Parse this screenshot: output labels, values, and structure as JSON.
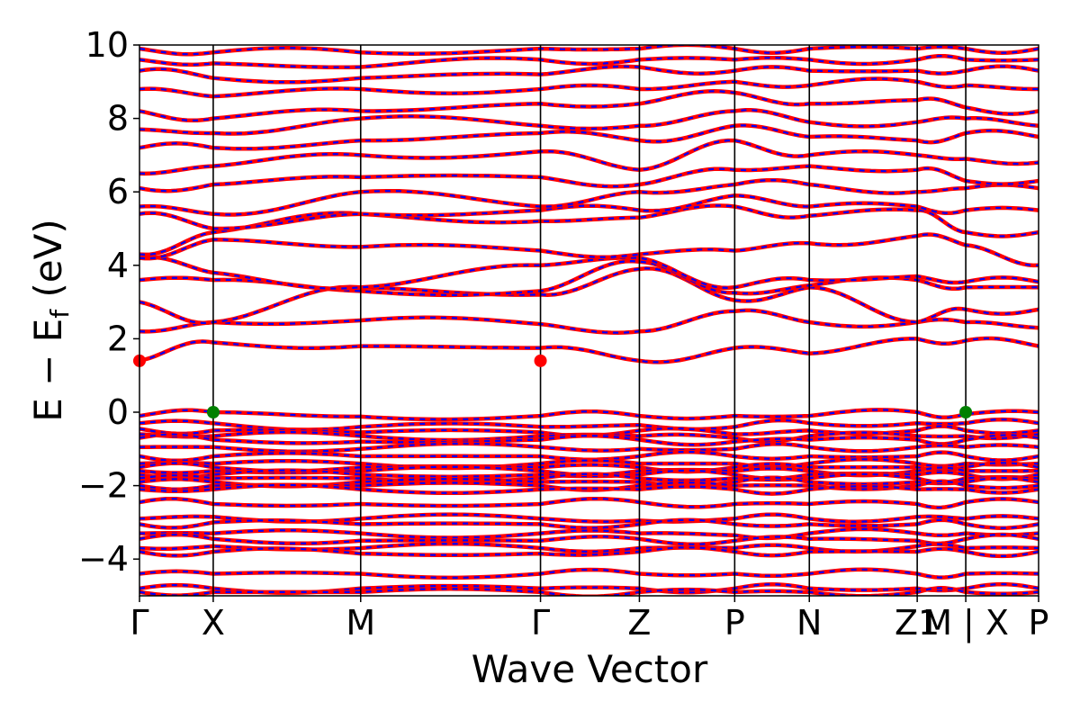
{
  "chart_data": {
    "type": "line",
    "title": "",
    "xlabel": "Wave Vector",
    "ylabel": {
      "main": "E − E",
      "sub": "f",
      "unit": " (eV)"
    },
    "ylim": [
      -5,
      10
    ],
    "yticks": [
      -4,
      -2,
      0,
      2,
      4,
      6,
      8,
      10
    ],
    "ytick_labels": [
      "−4",
      "−2",
      "0",
      "2",
      "4",
      "6",
      "8",
      "10"
    ],
    "kpath": [
      {
        "label": "Γ",
        "x": 0.0
      },
      {
        "label": "X",
        "x": 0.082
      },
      {
        "label": "M",
        "x": 0.246
      },
      {
        "label": "Γ",
        "x": 0.446
      },
      {
        "label": "Z",
        "x": 0.556
      },
      {
        "label": "P",
        "x": 0.662
      },
      {
        "label": "N",
        "x": 0.745
      },
      {
        "label": "Z1",
        "x": 0.865
      },
      {
        "label": "M | X",
        "x": 0.919
      },
      {
        "label": "P",
        "x": 1.0
      }
    ],
    "series_colors": {
      "spin_up": "#ff0000",
      "spin_down": "#0000ff"
    },
    "valence_band_maximum": [
      {
        "x": 0.082,
        "y": 0.0
      },
      {
        "x": 0.919,
        "y": 0.0
      }
    ],
    "conduction_band_minimum": [
      {
        "x": 0.0,
        "y": 1.4
      },
      {
        "x": 0.446,
        "y": 1.4
      }
    ],
    "vbm_color": "#008000",
    "cbm_color": "#ff0000",
    "conduction_bands": [
      [
        1.4,
        1.9,
        1.8,
        1.75,
        1.4,
        1.75,
        1.6,
        2.0,
        1.95,
        1.8,
        1.7
      ],
      [
        2.2,
        2.45,
        2.5,
        2.4,
        2.2,
        2.75,
        2.45,
        2.45,
        2.45,
        2.3,
        2.4
      ],
      [
        3.0,
        2.45,
        3.4,
        3.2,
        3.9,
        3.05,
        3.4,
        2.45,
        2.8,
        2.8,
        2.8
      ],
      [
        3.6,
        3.6,
        3.3,
        3.3,
        4.1,
        3.25,
        3.45,
        3.6,
        3.4,
        3.4,
        3.5
      ],
      [
        4.2,
        3.8,
        3.4,
        4.0,
        4.2,
        3.4,
        3.6,
        3.7,
        3.55,
        3.55,
        3.9
      ],
      [
        4.2,
        4.7,
        4.5,
        4.4,
        4.3,
        4.4,
        4.6,
        4.8,
        4.55,
        4.0,
        4.2
      ],
      [
        4.3,
        4.9,
        5.4,
        5.2,
        5.3,
        5.6,
        5.35,
        5.5,
        4.9,
        4.9,
        5.4
      ],
      [
        5.4,
        5.0,
        5.4,
        5.5,
        5.5,
        5.9,
        5.6,
        5.6,
        5.5,
        5.5,
        5.8
      ],
      [
        5.6,
        5.4,
        6.0,
        5.6,
        6.0,
        6.2,
        6.2,
        6.0,
        6.1,
        6.1,
        6.2
      ],
      [
        6.1,
        6.2,
        6.4,
        6.4,
        6.2,
        6.6,
        6.7,
        6.6,
        6.3,
        6.3,
        6.7
      ],
      [
        6.5,
        6.7,
        7.0,
        7.1,
        6.6,
        7.4,
        7.0,
        7.0,
        6.9,
        6.8,
        7.1
      ],
      [
        7.2,
        7.2,
        7.4,
        7.6,
        7.4,
        7.8,
        7.5,
        7.4,
        7.6,
        7.5,
        7.6
      ],
      [
        7.7,
        7.6,
        8.0,
        7.8,
        7.8,
        8.2,
        7.9,
        7.9,
        8.0,
        7.8,
        8.0
      ],
      [
        8.2,
        8.0,
        8.2,
        8.4,
        8.4,
        8.7,
        8.4,
        8.5,
        8.3,
        8.2,
        8.4
      ],
      [
        8.8,
        8.6,
        8.8,
        8.8,
        8.8,
        9.0,
        8.9,
        9.0,
        8.9,
        8.8,
        8.8
      ],
      [
        9.3,
        9.1,
        9.1,
        9.2,
        9.4,
        9.3,
        9.3,
        9.3,
        9.3,
        9.3,
        9.2
      ],
      [
        9.6,
        9.5,
        9.4,
        9.6,
        9.6,
        9.6,
        9.6,
        9.6,
        9.6,
        9.6,
        9.6
      ],
      [
        9.9,
        9.8,
        9.8,
        9.9,
        9.9,
        9.9,
        9.9,
        9.9,
        9.9,
        9.9,
        9.9
      ]
    ],
    "valence_bands": [
      [
        -0.1,
        0.0,
        -0.12,
        -0.1,
        -0.1,
        -0.1,
        -0.1,
        0.0,
        -0.05,
        0.0,
        -0.1
      ],
      [
        -0.3,
        -0.3,
        -0.4,
        -0.4,
        -0.35,
        -0.4,
        -0.3,
        -0.3,
        -0.3,
        -0.3,
        -0.35
      ],
      [
        -0.45,
        -0.5,
        -0.55,
        -0.55,
        -0.5,
        -0.6,
        -0.5,
        -0.5,
        -0.5,
        -0.5,
        -0.5
      ],
      [
        -0.6,
        -0.65,
        -0.65,
        -0.65,
        -0.65,
        -0.7,
        -0.65,
        -0.65,
        -0.65,
        -0.6,
        -0.6
      ],
      [
        -0.7,
        -0.75,
        -0.8,
        -0.75,
        -0.75,
        -0.8,
        -0.75,
        -0.75,
        -0.75,
        -0.7,
        -0.7
      ],
      [
        -0.95,
        -0.95,
        -1.0,
        -0.95,
        -1.0,
        -1.0,
        -0.95,
        -0.95,
        -0.95,
        -0.95,
        -0.95
      ],
      [
        -1.2,
        -1.2,
        -1.2,
        -1.2,
        -1.2,
        -1.2,
        -1.2,
        -1.2,
        -1.2,
        -1.2,
        -1.2
      ],
      [
        -1.4,
        -1.4,
        -1.4,
        -1.4,
        -1.4,
        -1.4,
        -1.4,
        -1.4,
        -1.4,
        -1.4,
        -1.4
      ],
      [
        -1.5,
        -1.5,
        -1.5,
        -1.5,
        -1.5,
        -1.5,
        -1.5,
        -1.5,
        -1.5,
        -1.5,
        -1.5
      ],
      [
        -1.6,
        -1.6,
        -1.6,
        -1.6,
        -1.6,
        -1.6,
        -1.6,
        -1.6,
        -1.6,
        -1.6,
        -1.6
      ],
      [
        -1.7,
        -1.7,
        -1.7,
        -1.7,
        -1.7,
        -1.7,
        -1.7,
        -1.7,
        -1.7,
        -1.7,
        -1.7
      ],
      [
        -1.8,
        -1.8,
        -1.8,
        -1.8,
        -1.8,
        -1.8,
        -1.8,
        -1.8,
        -1.8,
        -1.8,
        -1.8
      ],
      [
        -1.9,
        -1.9,
        -1.9,
        -1.9,
        -1.9,
        -1.9,
        -1.9,
        -1.9,
        -1.9,
        -1.9,
        -1.9
      ],
      [
        -2.0,
        -2.0,
        -2.0,
        -2.0,
        -2.0,
        -2.0,
        -2.0,
        -2.0,
        -2.0,
        -2.0,
        -2.0
      ],
      [
        -2.1,
        -2.1,
        -2.1,
        -2.1,
        -2.1,
        -2.1,
        -2.1,
        -2.1,
        -2.1,
        -2.1,
        -2.1
      ],
      [
        -2.45,
        -2.5,
        -2.5,
        -2.5,
        -2.45,
        -2.5,
        -2.5,
        -2.5,
        -2.45,
        -2.45,
        -2.5
      ],
      [
        -2.9,
        -2.85,
        -2.9,
        -2.9,
        -2.95,
        -2.9,
        -2.9,
        -2.85,
        -2.9,
        -2.9,
        -2.9
      ],
      [
        -3.05,
        -3.0,
        -3.05,
        -3.05,
        -3.05,
        -3.05,
        -3.05,
        -3.05,
        -3.05,
        -3.05,
        -3.05
      ],
      [
        -3.3,
        -3.3,
        -3.3,
        -3.3,
        -3.3,
        -3.35,
        -3.3,
        -3.3,
        -3.3,
        -3.3,
        -3.3
      ],
      [
        -3.45,
        -3.45,
        -3.5,
        -3.5,
        -3.45,
        -3.5,
        -3.45,
        -3.5,
        -3.45,
        -3.45,
        -3.45
      ],
      [
        -3.7,
        -3.65,
        -3.7,
        -3.7,
        -3.7,
        -3.7,
        -3.7,
        -3.65,
        -3.7,
        -3.7,
        -3.7
      ],
      [
        -3.8,
        -3.8,
        -3.85,
        -3.85,
        -3.8,
        -3.8,
        -3.8,
        -3.8,
        -3.8,
        -3.8,
        -3.8
      ],
      [
        -4.4,
        -4.4,
        -4.4,
        -4.4,
        -4.4,
        -4.4,
        -4.4,
        -4.4,
        -4.4,
        -4.4,
        -4.4
      ],
      [
        -4.8,
        -4.8,
        -4.8,
        -4.8,
        -4.8,
        -4.8,
        -4.8,
        -4.8,
        -4.8,
        -4.8,
        -4.8
      ],
      [
        -4.9,
        -4.9,
        -4.9,
        -4.9,
        -4.9,
        -4.9,
        -4.9,
        -4.9,
        -4.9,
        -4.9,
        -4.9
      ]
    ]
  }
}
